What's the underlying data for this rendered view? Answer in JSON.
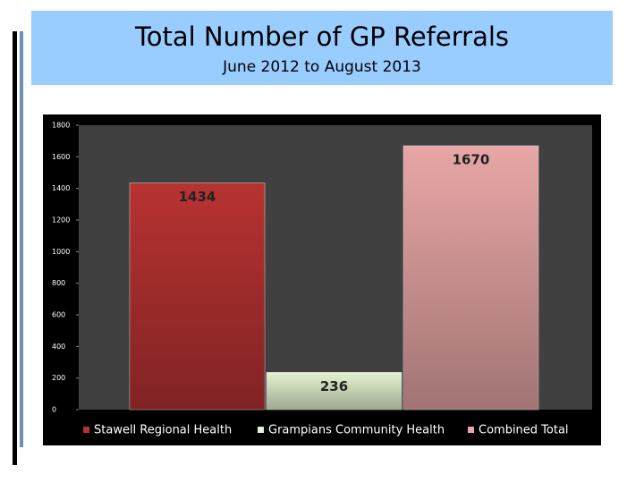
{
  "header": {
    "title": "Total Number of GP Referrals",
    "subtitle": "June 2012 to August 2013"
  },
  "chart_data": {
    "type": "bar",
    "series": [
      {
        "name": "Stawell Regional Health",
        "color": "#b83232",
        "values": [
          1434
        ]
      },
      {
        "name": "Grampians Community Health",
        "color": "#e4f2cf",
        "values": [
          236
        ]
      },
      {
        "name": "Combined Total",
        "color": "#e8a6a6",
        "values": [
          1670
        ]
      }
    ],
    "ylim": [
      0,
      1800
    ],
    "yticks": [
      0,
      200,
      400,
      600,
      800,
      1000,
      1200,
      1400,
      1600,
      1800
    ],
    "legend": "bottom"
  }
}
